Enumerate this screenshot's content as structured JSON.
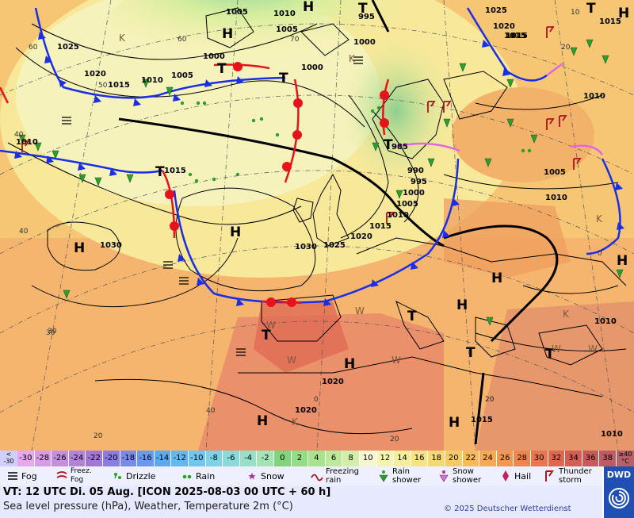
{
  "colors": {
    "warm_front": "#e8121b",
    "cold_front": "#1a2ee6",
    "occlusion": "#e366e3",
    "sea_warm": "#f5b06a",
    "land_hot": "#e86a4a",
    "cool_land": "#9fdc8c",
    "isobar": "#000000"
  },
  "map": {
    "high_label": "H",
    "low_label": "T",
    "pressure_labels": [
      "1005",
      "1010",
      "995",
      "1025",
      "1020",
      "1015",
      "1025",
      "1020",
      "1015",
      "1005",
      "1010",
      "1000",
      "1000",
      "1005",
      "1000",
      "985",
      "990",
      "995",
      "1000",
      "1005",
      "1010",
      "1015",
      "1020",
      "1025",
      "1030",
      "1030",
      "1005",
      "1010",
      "1010",
      "1010",
      "1015",
      "1020",
      "1020",
      "1015",
      "1010",
      "1015",
      "1015",
      "1010"
    ],
    "graticule_labels": [
      "60",
      "50",
      "40",
      "30",
      "20",
      "60",
      "70",
      "20",
      "40",
      "30",
      "20",
      "0",
      "0",
      "10",
      "20",
      "40",
      "20"
    ],
    "air_mass_labels": [
      "K",
      "K",
      "K",
      "K",
      "W",
      "W",
      "W",
      "W",
      "W",
      "W",
      "K"
    ]
  },
  "temperature_scale": {
    "low_end": [
      "<",
      "-30"
    ],
    "values": [
      "-30",
      "-28",
      "-26",
      "-24",
      "-22",
      "-20",
      "-18",
      "-16",
      "-14",
      "-12",
      "-10",
      "-8",
      "-6",
      "-4",
      "-2",
      "0",
      "2",
      "4",
      "6",
      "8",
      "10",
      "12",
      "14",
      "16",
      "18",
      "20",
      "22",
      "24",
      "26",
      "28",
      "30",
      "32",
      "34",
      "36",
      "38"
    ],
    "colors": [
      "#e8a8ee",
      "#d89be6",
      "#c58ee0",
      "#b382da",
      "#a276d4",
      "#8b7de0",
      "#7a8ae8",
      "#6a9aee",
      "#5aaaf0",
      "#64b8f2",
      "#70c6f0",
      "#7cd2e6",
      "#8adada",
      "#96e0c8",
      "#a2e4b4",
      "#7fd67a",
      "#93dd84",
      "#a8e38e",
      "#bde99a",
      "#d2eea8",
      "#f6f7d2",
      "#f6f4b4",
      "#f5ee9c",
      "#f5e486",
      "#f6d874",
      "#f6ca66",
      "#f5bb5c",
      "#f4aa56",
      "#f29852",
      "#ee8650",
      "#e8764e",
      "#df684e",
      "#d45e52",
      "#c95a5a",
      "#be5c66"
    ],
    "high_end": [
      "≥40",
      "°C"
    ]
  },
  "legend": [
    {
      "icon": "fog-icon",
      "label": "Fog"
    },
    {
      "icon": "freezing-fog-icon",
      "label": "Freez.\nFog"
    },
    {
      "icon": "drizzle-icon",
      "label": "Drizzle"
    },
    {
      "icon": "rain-icon",
      "label": "Rain"
    },
    {
      "icon": "snow-icon",
      "label": "Snow"
    },
    {
      "icon": "freezing-rain-icon",
      "label": "Freezing\nrain"
    },
    {
      "icon": "rain-shower-icon",
      "label": "Rain\nshower"
    },
    {
      "icon": "snow-shower-icon",
      "label": "Snow\nshower"
    },
    {
      "icon": "hail-icon",
      "label": "Hail"
    },
    {
      "icon": "thunderstorm-icon",
      "label": "Thunder\nstorm"
    }
  ],
  "info": {
    "valid_time": "VT: 12 UTC Di.  05 Aug. [ICON 2025-08-03  00 UTC + 60 h]",
    "subtitle": "Sea level pressure (hPa), Weather, Temperature 2m (°C)",
    "copyright": "© 2025 Deutscher Wetterdienst"
  },
  "logo": {
    "text": "DWD"
  }
}
